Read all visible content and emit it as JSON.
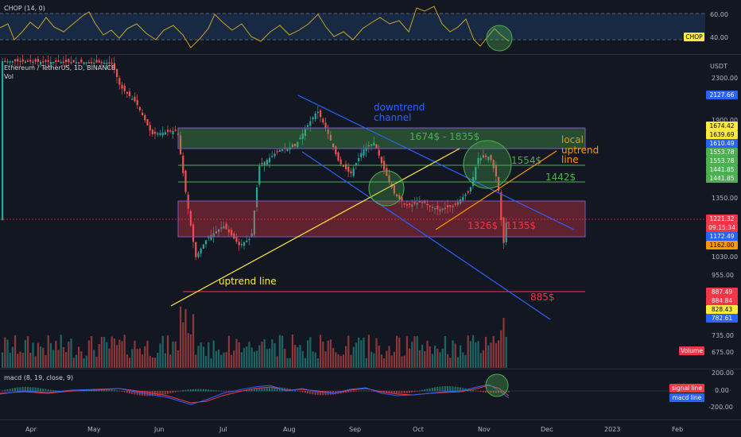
{
  "chop": {
    "legend": "CHOP (14, 0)",
    "tag": "CHOP",
    "levels": [
      "60.00",
      "40.00"
    ]
  },
  "main": {
    "symbol": "Ethereum / TetherUS, 1D, BINANCE",
    "vol_label": "Vol",
    "currency": "USDT",
    "price_labels": [
      "2300.00",
      "1900.00",
      "1350.00",
      "1030.00",
      "955.00",
      "735.00",
      "675.00"
    ],
    "price_tags": [
      {
        "value": "2127.66",
        "color": "#2962ff",
        "text": "#ffffff"
      },
      {
        "value": "1674.42",
        "color": "#ffeb3b",
        "text": "#000000"
      },
      {
        "value": "1639.69",
        "color": "#ffeb3b",
        "text": "#000000"
      },
      {
        "value": "1610.49",
        "color": "#2962ff",
        "text": "#ffffff"
      },
      {
        "value": "1553.78",
        "color": "#4caf50",
        "text": "#ffffff"
      },
      {
        "value": "1553.78",
        "color": "#4caf50",
        "text": "#ffffff"
      },
      {
        "value": "1441.85",
        "color": "#4caf50",
        "text": "#ffffff"
      },
      {
        "value": "1441.85",
        "color": "#4caf50",
        "text": "#ffffff"
      },
      {
        "value": "1221.32",
        "color": "#f23645",
        "text": "#ffffff"
      },
      {
        "value": "09:15:34",
        "color": "#f23645",
        "text": "#ffffff"
      },
      {
        "value": "1172.49",
        "color": "#2962ff",
        "text": "#ffffff"
      },
      {
        "value": "1162.00",
        "color": "#ff9800",
        "text": "#000000"
      },
      {
        "value": "887.49",
        "color": "#f23645",
        "text": "#ffffff"
      },
      {
        "value": "884.84",
        "color": "#f23645",
        "text": "#ffffff"
      },
      {
        "value": "828.43",
        "color": "#ffeb3b",
        "text": "#000000"
      },
      {
        "value": "782.61",
        "color": "#2962ff",
        "text": "#ffffff"
      }
    ],
    "volume_tag": "Volume",
    "annotations": {
      "downtrend": "downtrend\nchannel",
      "range_top": "1674$ - 1835$",
      "local": "local",
      "uptrend_line_right": "uptrend\nline",
      "level_1554": "1554$",
      "level_1442": "1442$",
      "red_left": "1326$",
      "red_right": "1135$",
      "uptrend_line": "uptrend line",
      "level_885": "885$"
    }
  },
  "macd": {
    "legend": "macd (8, 19, close, 9)",
    "levels": [
      "200.00",
      "0.00",
      "-200.00"
    ],
    "signal_tag": "signal line",
    "macd_tag": "macd line"
  },
  "x_axis": [
    "Apr",
    "May",
    "Jun",
    "Jul",
    "Aug",
    "Sep",
    "Oct",
    "Nov",
    "Dec",
    "2023",
    "Feb"
  ],
  "colors": {
    "background": "#131722",
    "up": "#26a69a",
    "down": "#ef5350",
    "green_zone": "#4caf50",
    "red_zone": "#f23645",
    "channel": "#2962ff",
    "uptrend": "#ffeb3b",
    "local_uptrend": "#ff9800"
  }
}
